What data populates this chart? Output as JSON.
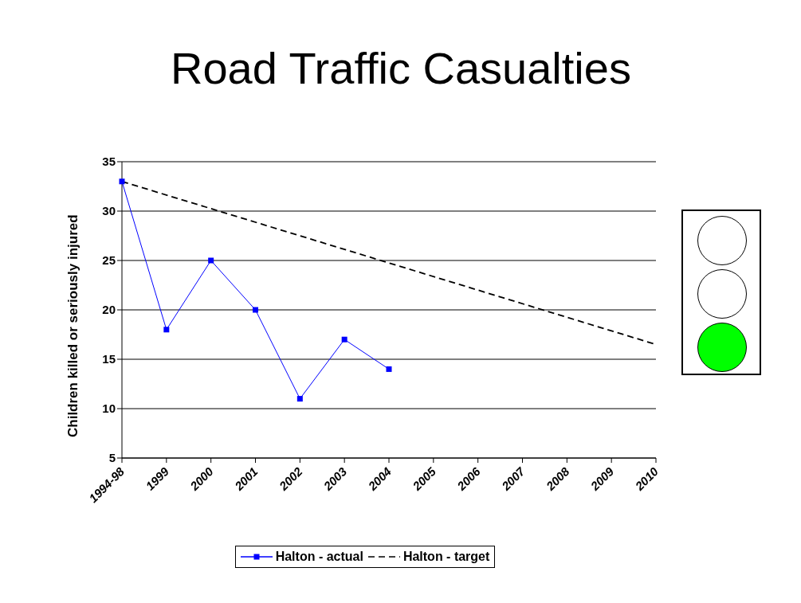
{
  "chart_data": {
    "type": "line",
    "title": "Road Traffic Casualties",
    "ylabel": "Children killed or seriously injured",
    "categories": [
      "1994-98",
      "1999",
      "2000",
      "2001",
      "2002",
      "2003",
      "2004",
      "2005",
      "2006",
      "2007",
      "2008",
      "2009",
      "2010"
    ],
    "series": [
      {
        "name": "Halton - actual",
        "color": "#0000ff",
        "marker": "square",
        "line_style": "solid",
        "values": [
          33,
          18,
          25,
          20,
          11,
          17,
          14,
          null,
          null,
          null,
          null,
          null,
          null
        ]
      },
      {
        "name": "Halton - target",
        "color": "#000000",
        "marker": "none",
        "line_style": "dashed",
        "values": [
          33,
          null,
          null,
          null,
          null,
          null,
          null,
          null,
          null,
          null,
          null,
          null,
          16.5
        ]
      }
    ],
    "ylim": [
      5,
      35
    ],
    "yticks": [
      5,
      10,
      15,
      20,
      25,
      30,
      35
    ],
    "grid": "y",
    "legend": "bottom"
  }
}
